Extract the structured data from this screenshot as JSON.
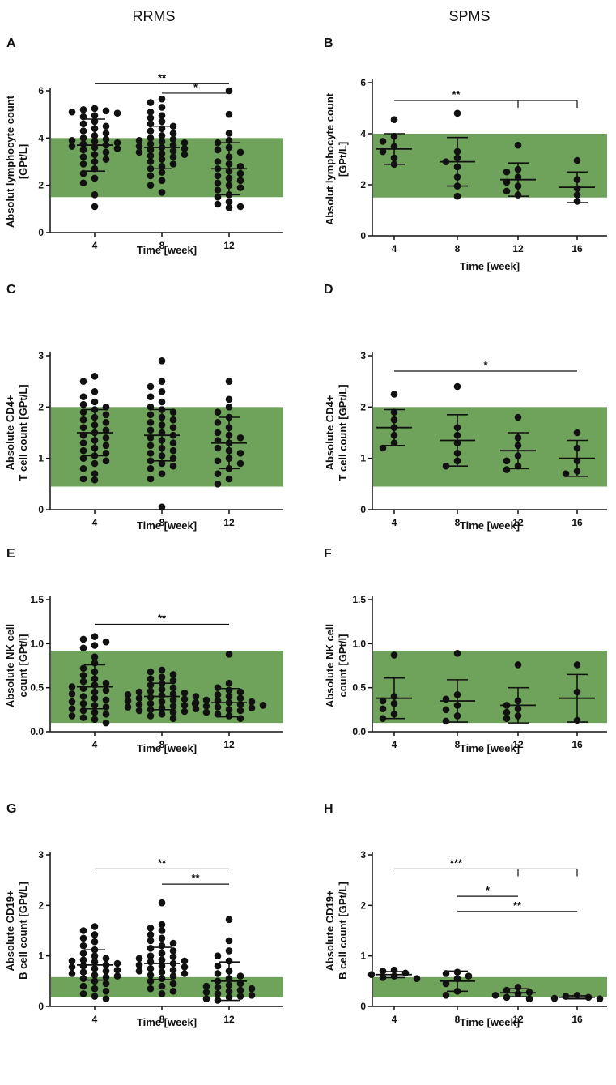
{
  "figure": {
    "column_titles": [
      "RRMS",
      "SPMS"
    ],
    "colors": {
      "reference_band": "#6fa25a",
      "points": "#111111",
      "axis": "#111111"
    }
  },
  "chart_data": [
    {
      "panel": "A",
      "type": "scatter",
      "title": "",
      "xlabel": "Time [week]",
      "ylabel_lines": [
        "Absolut lymphocyte count",
        "[GPt/L]"
      ],
      "ylim": [
        0,
        6
      ],
      "yticks": [
        0,
        2,
        4,
        6
      ],
      "grid": false,
      "reference_range": [
        1.5,
        4.0
      ],
      "categories": [
        "4",
        "8",
        "12"
      ],
      "series": [
        {
          "name": "4",
          "mean": 3.7,
          "sd": 1.1,
          "points": [
            5.25,
            5.2,
            5.15,
            5.1,
            5.05,
            4.95,
            4.9,
            4.7,
            4.6,
            4.5,
            4.4,
            4.3,
            4.2,
            4.1,
            4.0,
            3.95,
            3.9,
            3.85,
            3.8,
            3.75,
            3.7,
            3.65,
            3.6,
            3.55,
            3.5,
            3.4,
            3.3,
            3.2,
            3.1,
            3.0,
            2.9,
            2.7,
            2.5,
            2.3,
            2.1,
            1.6,
            1.1
          ]
        },
        {
          "name": "8",
          "mean": 3.6,
          "sd": 0.9,
          "points": [
            5.65,
            5.5,
            5.3,
            5.1,
            4.95,
            4.85,
            4.7,
            4.6,
            4.5,
            4.4,
            4.3,
            4.2,
            4.1,
            4.0,
            3.95,
            3.9,
            3.85,
            3.8,
            3.75,
            3.7,
            3.65,
            3.6,
            3.55,
            3.5,
            3.45,
            3.4,
            3.35,
            3.3,
            3.25,
            3.2,
            3.1,
            3.0,
            2.9,
            2.8,
            2.7,
            2.55,
            2.4,
            2.2,
            2.0,
            1.7
          ]
        },
        {
          "name": "12",
          "mean": 2.7,
          "sd": 1.1,
          "points": [
            6.0,
            5.0,
            4.2,
            3.9,
            3.8,
            3.6,
            3.5,
            3.4,
            3.2,
            3.0,
            2.9,
            2.8,
            2.7,
            2.6,
            2.5,
            2.4,
            2.3,
            2.2,
            2.1,
            2.0,
            1.9,
            1.8,
            1.6,
            1.5,
            1.3,
            1.2,
            1.1,
            1.05
          ]
        }
      ],
      "significance": [
        {
          "label": "**",
          "from": "4",
          "to": "12",
          "y": 6.3
        },
        {
          "label": "*",
          "from": "8",
          "to": "12",
          "y": 5.9
        }
      ]
    },
    {
      "panel": "B",
      "type": "scatter",
      "title": "",
      "xlabel": "Time [week]",
      "ylabel_lines": [
        "Absolut lymphocyte count",
        "[GPt/L]"
      ],
      "ylim": [
        0,
        6
      ],
      "yticks": [
        0,
        2,
        4,
        6
      ],
      "grid": false,
      "reference_range": [
        1.5,
        4.0
      ],
      "categories": [
        "4",
        "8",
        "12",
        "16"
      ],
      "series": [
        {
          "name": "4",
          "mean": 3.4,
          "sd": 0.6,
          "points": [
            4.55,
            3.9,
            3.7,
            3.5,
            3.3,
            3.05,
            2.8
          ]
        },
        {
          "name": "8",
          "mean": 2.9,
          "sd": 0.95,
          "points": [
            4.8,
            3.3,
            3.05,
            2.9,
            2.7,
            2.3,
            1.95,
            1.55
          ]
        },
        {
          "name": "12",
          "mean": 2.2,
          "sd": 0.65,
          "points": [
            3.55,
            2.6,
            2.5,
            2.3,
            2.1,
            1.95,
            1.75,
            1.6
          ]
        },
        {
          "name": "16",
          "mean": 1.9,
          "sd": 0.6,
          "points": [
            2.95,
            2.2,
            1.85,
            1.6,
            1.35
          ]
        }
      ],
      "significance": [
        {
          "label": "**",
          "from": "4",
          "to": "16",
          "mid": "12",
          "y": 5.3
        }
      ]
    },
    {
      "panel": "C",
      "type": "scatter",
      "title": "",
      "xlabel": "Time [week]",
      "ylabel_lines": [
        "Absolute CD4+",
        "T cell count [GPt/L]"
      ],
      "ylim": [
        0,
        3
      ],
      "yticks": [
        0,
        1,
        2,
        3
      ],
      "grid": false,
      "reference_range": [
        0.45,
        2.0
      ],
      "categories": [
        "4",
        "8",
        "12"
      ],
      "series": [
        {
          "name": "4",
          "mean": 1.5,
          "sd": 0.45,
          "points": [
            2.6,
            2.5,
            2.3,
            2.2,
            2.1,
            2.05,
            2.0,
            1.95,
            1.9,
            1.85,
            1.8,
            1.75,
            1.7,
            1.65,
            1.6,
            1.55,
            1.5,
            1.45,
            1.4,
            1.35,
            1.3,
            1.25,
            1.2,
            1.15,
            1.1,
            1.05,
            1.0,
            0.95,
            0.9,
            0.8,
            0.7,
            0.6,
            0.58
          ]
        },
        {
          "name": "8",
          "mean": 1.45,
          "sd": 0.5,
          "points": [
            2.9,
            2.5,
            2.4,
            2.3,
            2.2,
            2.1,
            2.0,
            1.95,
            1.9,
            1.85,
            1.8,
            1.75,
            1.7,
            1.65,
            1.6,
            1.55,
            1.5,
            1.45,
            1.4,
            1.35,
            1.3,
            1.25,
            1.2,
            1.15,
            1.1,
            1.05,
            1.0,
            0.95,
            0.9,
            0.85,
            0.8,
            0.7,
            0.6,
            0.05
          ]
        },
        {
          "name": "12",
          "mean": 1.3,
          "sd": 0.5,
          "points": [
            2.5,
            2.15,
            2.0,
            1.9,
            1.8,
            1.7,
            1.6,
            1.5,
            1.45,
            1.4,
            1.35,
            1.3,
            1.2,
            1.15,
            1.1,
            1.0,
            0.95,
            0.9,
            0.8,
            0.7,
            0.6,
            0.5
          ]
        }
      ],
      "significance": []
    },
    {
      "panel": "D",
      "type": "scatter",
      "title": "",
      "xlabel": "Time [week]",
      "ylabel_lines": [
        "Absolute CD4+",
        "T cell count [GPt/L]"
      ],
      "ylim": [
        0,
        3
      ],
      "yticks": [
        0,
        1,
        2,
        3
      ],
      "grid": false,
      "reference_range": [
        0.45,
        2.0
      ],
      "categories": [
        "4",
        "8",
        "12",
        "16"
      ],
      "series": [
        {
          "name": "4",
          "mean": 1.6,
          "sd": 0.35,
          "points": [
            2.25,
            1.9,
            1.75,
            1.6,
            1.45,
            1.3,
            1.2
          ]
        },
        {
          "name": "8",
          "mean": 1.35,
          "sd": 0.5,
          "points": [
            2.4,
            1.6,
            1.45,
            1.3,
            1.1,
            0.95,
            0.85
          ]
        },
        {
          "name": "12",
          "mean": 1.15,
          "sd": 0.35,
          "points": [
            1.8,
            1.4,
            1.25,
            1.05,
            0.95,
            0.85,
            0.78
          ]
        },
        {
          "name": "16",
          "mean": 1.0,
          "sd": 0.35,
          "points": [
            1.5,
            1.2,
            0.95,
            0.75,
            0.7
          ]
        }
      ],
      "significance": [
        {
          "label": "*",
          "from": "4",
          "to": "16",
          "y": 2.7
        }
      ]
    },
    {
      "panel": "E",
      "type": "scatter",
      "title": "",
      "xlabel": "Time [week]",
      "ylabel_lines": [
        "Absolute NK cell",
        "count [GPt/l]"
      ],
      "ylim": [
        0,
        1.5
      ],
      "yticks": [
        0.0,
        0.5,
        1.0,
        1.5
      ],
      "ytick_labels": [
        "0.0",
        "0.5",
        "1.0",
        "1.5"
      ],
      "grid": false,
      "reference_range": [
        0.1,
        0.92
      ],
      "categories": [
        "4",
        "8",
        "12"
      ],
      "series": [
        {
          "name": "4",
          "mean": 0.51,
          "sd": 0.25,
          "points": [
            1.08,
            1.05,
            1.02,
            0.98,
            0.95,
            0.85,
            0.78,
            0.72,
            0.68,
            0.64,
            0.6,
            0.57,
            0.55,
            0.53,
            0.51,
            0.49,
            0.47,
            0.45,
            0.43,
            0.4,
            0.38,
            0.36,
            0.34,
            0.32,
            0.3,
            0.28,
            0.26,
            0.24,
            0.22,
            0.2,
            0.18,
            0.16,
            0.14,
            0.1
          ]
        },
        {
          "name": "8",
          "mean": 0.4,
          "sd": 0.15,
          "points": [
            0.7,
            0.68,
            0.65,
            0.62,
            0.6,
            0.58,
            0.55,
            0.53,
            0.5,
            0.48,
            0.46,
            0.45,
            0.44,
            0.43,
            0.42,
            0.41,
            0.4,
            0.39,
            0.38,
            0.37,
            0.36,
            0.35,
            0.34,
            0.33,
            0.32,
            0.31,
            0.3,
            0.29,
            0.28,
            0.27,
            0.26,
            0.25,
            0.24,
            0.23,
            0.22,
            0.2,
            0.18,
            0.15
          ]
        },
        {
          "name": "12",
          "mean": 0.33,
          "sd": 0.16,
          "points": [
            0.88,
            0.55,
            0.5,
            0.47,
            0.45,
            0.42,
            0.4,
            0.38,
            0.36,
            0.35,
            0.34,
            0.33,
            0.32,
            0.31,
            0.3,
            0.29,
            0.28,
            0.27,
            0.25,
            0.24,
            0.22,
            0.2,
            0.18,
            0.15
          ]
        }
      ],
      "significance": [
        {
          "label": "**",
          "from": "4",
          "to": "12",
          "y": 1.22
        }
      ]
    },
    {
      "panel": "F",
      "type": "scatter",
      "title": "",
      "xlabel": "Time [week]",
      "ylabel_lines": [
        "Absolute NK cell",
        "count [GPt/l]"
      ],
      "ylim": [
        0,
        1.5
      ],
      "yticks": [
        0.0,
        0.5,
        1.0,
        1.5
      ],
      "ytick_labels": [
        "0.0",
        "0.5",
        "1.0",
        "1.5"
      ],
      "grid": false,
      "reference_range": [
        0.1,
        0.92
      ],
      "categories": [
        "4",
        "8",
        "12",
        "16"
      ],
      "series": [
        {
          "name": "4",
          "mean": 0.38,
          "sd": 0.23,
          "points": [
            0.87,
            0.4,
            0.35,
            0.32,
            0.26,
            0.2,
            0.15
          ]
        },
        {
          "name": "8",
          "mean": 0.35,
          "sd": 0.24,
          "points": [
            0.89,
            0.42,
            0.37,
            0.3,
            0.25,
            0.18,
            0.12
          ]
        },
        {
          "name": "12",
          "mean": 0.3,
          "sd": 0.2,
          "points": [
            0.76,
            0.35,
            0.3,
            0.26,
            0.22,
            0.18,
            0.15
          ]
        },
        {
          "name": "16",
          "mean": 0.38,
          "sd": 0.27,
          "points": [
            0.76,
            0.45,
            0.13
          ]
        }
      ],
      "significance": []
    },
    {
      "panel": "G",
      "type": "scatter",
      "title": "",
      "xlabel": "Time [week]",
      "ylabel_lines": [
        "Absolute CD19+",
        "B cell count [GPt/L]"
      ],
      "ylim": [
        0,
        3
      ],
      "yticks": [
        0,
        1,
        2,
        3
      ],
      "grid": false,
      "reference_range": [
        0.18,
        0.58
      ],
      "categories": [
        "4",
        "8",
        "12"
      ],
      "series": [
        {
          "name": "4",
          "mean": 0.82,
          "sd": 0.3,
          "points": [
            1.58,
            1.5,
            1.42,
            1.35,
            1.28,
            1.2,
            1.12,
            1.05,
            1.0,
            0.95,
            0.92,
            0.9,
            0.88,
            0.85,
            0.82,
            0.8,
            0.78,
            0.75,
            0.72,
            0.7,
            0.68,
            0.65,
            0.62,
            0.6,
            0.58,
            0.55,
            0.5,
            0.45,
            0.4,
            0.35,
            0.3,
            0.25,
            0.2,
            0.15
          ]
        },
        {
          "name": "8",
          "mean": 0.85,
          "sd": 0.32,
          "points": [
            2.05,
            1.62,
            1.55,
            1.5,
            1.42,
            1.35,
            1.3,
            1.25,
            1.2,
            1.15,
            1.1,
            1.05,
            1.0,
            0.98,
            0.95,
            0.92,
            0.9,
            0.88,
            0.85,
            0.82,
            0.8,
            0.78,
            0.75,
            0.72,
            0.7,
            0.68,
            0.65,
            0.62,
            0.6,
            0.55,
            0.5,
            0.45,
            0.4,
            0.35,
            0.3,
            0.25
          ]
        },
        {
          "name": "12",
          "mean": 0.5,
          "sd": 0.38,
          "points": [
            1.72,
            1.3,
            1.1,
            1.0,
            0.9,
            0.8,
            0.7,
            0.65,
            0.6,
            0.55,
            0.5,
            0.45,
            0.42,
            0.4,
            0.38,
            0.35,
            0.32,
            0.3,
            0.28,
            0.25,
            0.22,
            0.2,
            0.18,
            0.15,
            0.12
          ]
        }
      ],
      "significance": [
        {
          "label": "**",
          "from": "4",
          "to": "12",
          "y": 2.72
        },
        {
          "label": "**",
          "from": "8",
          "to": "12",
          "y": 2.42
        }
      ]
    },
    {
      "panel": "H",
      "type": "scatter",
      "title": "",
      "xlabel": "Time [week]",
      "ylabel_lines": [
        "Absolute CD19+",
        "B cell count [GPt/L]"
      ],
      "ylim": [
        0,
        3
      ],
      "yticks": [
        0,
        1,
        2,
        3
      ],
      "grid": false,
      "reference_range": [
        0.18,
        0.58
      ],
      "categories": [
        "4",
        "8",
        "12",
        "16"
      ],
      "series": [
        {
          "name": "4",
          "mean": 0.63,
          "sd": 0.06,
          "points": [
            0.72,
            0.7,
            0.66,
            0.63,
            0.6,
            0.57,
            0.55
          ]
        },
        {
          "name": "8",
          "mean": 0.5,
          "sd": 0.2,
          "points": [
            0.68,
            0.65,
            0.6,
            0.55,
            0.45,
            0.3,
            0.22
          ]
        },
        {
          "name": "12",
          "mean": 0.27,
          "sd": 0.08,
          "points": [
            0.38,
            0.32,
            0.28,
            0.25,
            0.22,
            0.18,
            0.15
          ]
        },
        {
          "name": "16",
          "mean": 0.18,
          "sd": 0.03,
          "points": [
            0.22,
            0.2,
            0.18,
            0.16,
            0.15
          ]
        }
      ],
      "significance": [
        {
          "label": "***",
          "from": "4",
          "to": "16",
          "mid": "12",
          "y": 2.72
        },
        {
          "label": "*",
          "from": "8",
          "to": "12",
          "y": 2.18
        },
        {
          "label": "**",
          "from": "8",
          "to": "16",
          "y": 1.88
        }
      ]
    }
  ]
}
